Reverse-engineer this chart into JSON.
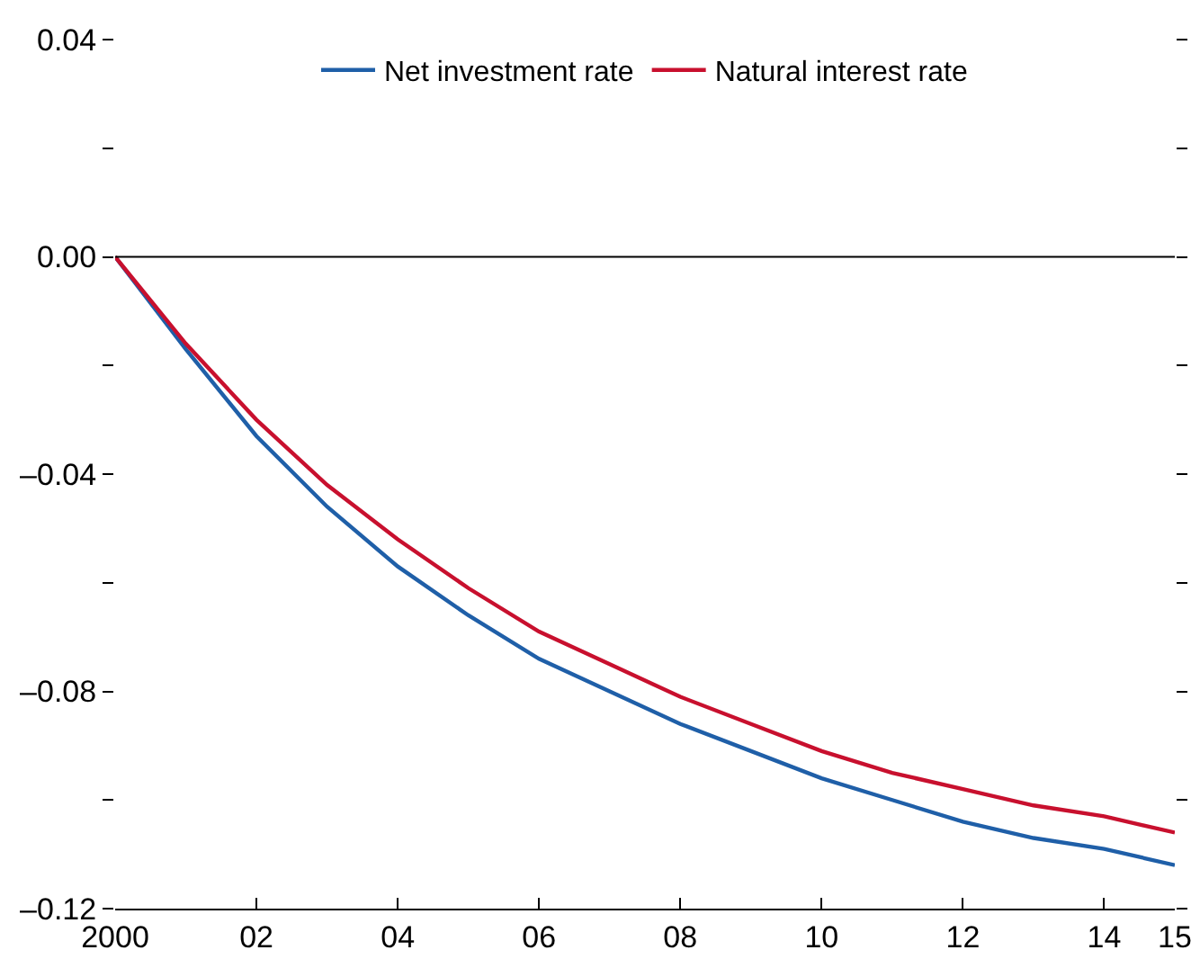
{
  "chart_data": {
    "type": "line",
    "x": [
      2000,
      2001,
      2002,
      2003,
      2004,
      2005,
      2006,
      2007,
      2008,
      2009,
      2010,
      2011,
      2012,
      2013,
      2014,
      2015
    ],
    "series": [
      {
        "name": "Net investment rate",
        "color": "#1f5fa8",
        "values": [
          0,
          -0.017,
          -0.033,
          -0.046,
          -0.057,
          -0.066,
          -0.074,
          -0.08,
          -0.086,
          -0.091,
          -0.096,
          -0.1,
          -0.104,
          -0.107,
          -0.109,
          -0.112
        ]
      },
      {
        "name": "Natural interest rate",
        "color": "#c8102e",
        "values": [
          0,
          -0.016,
          -0.03,
          -0.042,
          -0.052,
          -0.061,
          -0.069,
          -0.075,
          -0.081,
          -0.086,
          -0.091,
          -0.095,
          -0.098,
          -0.101,
          -0.103,
          -0.106
        ]
      }
    ],
    "xlim": [
      2000,
      2015
    ],
    "xticks": [
      {
        "value": 2000,
        "label": "2000"
      },
      {
        "value": 2002,
        "label": "02"
      },
      {
        "value": 2004,
        "label": "04"
      },
      {
        "value": 2006,
        "label": "06"
      },
      {
        "value": 2008,
        "label": "08"
      },
      {
        "value": 2010,
        "label": "10"
      },
      {
        "value": 2012,
        "label": "12"
      },
      {
        "value": 2014,
        "label": "14"
      },
      {
        "value": 2015,
        "label": "15"
      }
    ],
    "ylim": [
      -0.12,
      0.04
    ],
    "yticks": [
      {
        "value": 0.04,
        "label": "0.04"
      },
      {
        "value": 0.02,
        "label": null
      },
      {
        "value": 0,
        "label": "0.00"
      },
      {
        "value": -0.02,
        "label": null
      },
      {
        "value": -0.04,
        "label": "–0.04"
      },
      {
        "value": -0.06,
        "label": null
      },
      {
        "value": -0.08,
        "label": "–0.08"
      },
      {
        "value": -0.1,
        "label": null
      },
      {
        "value": -0.12,
        "label": "–0.12"
      }
    ],
    "ref_lines": [
      {
        "axis": "y",
        "value": 0,
        "color": "#000000"
      }
    ],
    "grid": false,
    "legend": "top",
    "marker": "none",
    "line_style": "solid"
  }
}
